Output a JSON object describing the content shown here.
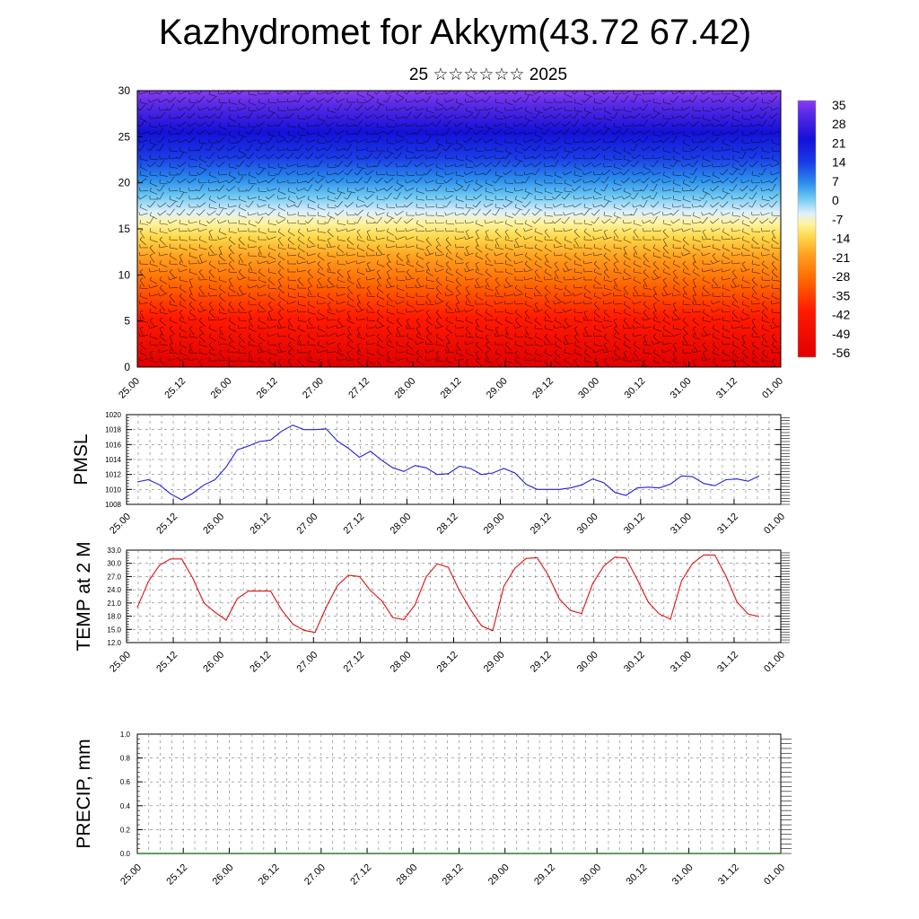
{
  "header": {
    "title": "Kazhydromet for Akkym(43.72 67.42)",
    "subtitle": "25 ☆☆☆☆☆☆ 2025"
  },
  "colors": {
    "pmsl_line": "#1f1fe0",
    "temp_line": "#e01010",
    "precip_line": "#2e7d32",
    "axis": "#000000",
    "grid": "#777777",
    "wind_barbs": "#000000"
  },
  "colorbar": {
    "labels": [
      "35",
      "28",
      "21",
      "14",
      "7",
      "0",
      "-7",
      "-14",
      "-21",
      "-28",
      "-35",
      "-42",
      "-49",
      "-56"
    ],
    "stops": [
      "#ffb3b3",
      "#e60000",
      "#ff2a00",
      "#ff6a00",
      "#ff9900",
      "#ffcc33",
      "#fff06e",
      "#d7eefa",
      "#5fc8f0",
      "#2aa0ea",
      "#2b5ce8",
      "#1a2ae0",
      "#1a10d8",
      "#8a3cf0"
    ]
  },
  "chart_data": [
    {
      "type": "heatmap",
      "title": "",
      "ylim": [
        0,
        30
      ],
      "yticks": [
        0,
        5,
        10,
        15,
        20,
        25,
        30
      ],
      "xticks": [
        "25.00",
        "25.12",
        "26.00",
        "26.12",
        "27.00",
        "27.12",
        "28.00",
        "28.12",
        "29.00",
        "29.12",
        "30.00",
        "30.12",
        "31.00",
        "31.12",
        "01.00"
      ],
      "description_levels": "temperature by level with wind barbs",
      "colorbar_range": [
        -56,
        35
      ]
    },
    {
      "type": "line",
      "ylabel": "PMSL",
      "ylim": [
        1008,
        1020
      ],
      "yticks": [
        1008,
        1010,
        1012,
        1014,
        1016,
        1018,
        1020
      ],
      "xticks": [
        "25.00",
        "25.12",
        "26.00",
        "26.12",
        "27.00",
        "27.12",
        "28.00",
        "28.12",
        "29.00",
        "29.12",
        "30.00",
        "30.12",
        "31.00",
        "31.12",
        "01.00"
      ],
      "series": [
        {
          "values": [
            1011.0,
            1011.3,
            1010.6,
            1009.4,
            1008.6,
            1009.5,
            1010.6,
            1011.3,
            1013.0,
            1015.3,
            1015.8,
            1016.4,
            1016.6,
            1017.8,
            1018.6,
            1018.0,
            1018.0,
            1018.1,
            1016.5,
            1015.5,
            1014.3,
            1015.1,
            1013.9,
            1012.9,
            1012.4,
            1013.2,
            1012.9,
            1012.0,
            1012.1,
            1013.1,
            1012.8,
            1012.0,
            1012.2,
            1012.8,
            1012.2,
            1010.7,
            1010.0,
            1010.0,
            1010.0,
            1010.2,
            1010.6,
            1011.4,
            1010.9,
            1009.6,
            1009.2,
            1010.2,
            1010.3,
            1010.2,
            1010.7,
            1011.8,
            1011.7,
            1010.8,
            1010.5,
            1011.3,
            1011.4,
            1011.1,
            1011.8
          ]
        }
      ]
    },
    {
      "type": "line",
      "ylabel": "TEMP at 2 M",
      "ylim": [
        12.0,
        33.0
      ],
      "yticks": [
        "12.0",
        "15.0",
        "18.0",
        "21.0",
        "24.0",
        "27.0",
        "30.0",
        "33.0"
      ],
      "xticks": [
        "25.00",
        "25.12",
        "26.00",
        "26.12",
        "27.00",
        "27.12",
        "28.00",
        "28.12",
        "29.00",
        "29.12",
        "30.00",
        "30.12",
        "31.00",
        "31.12",
        "01.00"
      ],
      "series": [
        {
          "values": [
            20.0,
            25.9,
            29.6,
            31.0,
            31.0,
            26.6,
            21.0,
            18.9,
            17.1,
            22.0,
            23.7,
            23.7,
            23.7,
            19.4,
            16.2,
            14.8,
            14.3,
            20.0,
            24.9,
            27.3,
            27.0,
            23.8,
            21.5,
            17.7,
            17.2,
            20.6,
            26.9,
            29.9,
            29.1,
            23.8,
            19.5,
            15.8,
            14.7,
            24.8,
            28.9,
            31.1,
            31.3,
            27.3,
            21.9,
            19.3,
            18.6,
            25.4,
            29.4,
            31.4,
            31.2,
            26.4,
            21.2,
            18.5,
            17.3,
            26.0,
            30.0,
            31.9,
            31.9,
            27.1,
            21.2,
            18.5,
            17.9
          ]
        }
      ]
    },
    {
      "type": "line",
      "ylabel": "PRECIP, mm",
      "ylim": [
        0.0,
        1.0
      ],
      "yticks": [
        "0.0",
        "0.2",
        "0.4",
        "0.6",
        "0.8",
        "1.0"
      ],
      "xticks": [
        "25.00",
        "25.12",
        "26.00",
        "26.12",
        "27.00",
        "27.12",
        "28.00",
        "28.12",
        "29.00",
        "29.12",
        "30.00",
        "30.12",
        "31.00",
        "31.12",
        "01.00"
      ],
      "series": [
        {
          "values": [
            0,
            0,
            0,
            0,
            0,
            0,
            0,
            0,
            0,
            0,
            0,
            0,
            0,
            0,
            0,
            0,
            0,
            0,
            0,
            0,
            0,
            0,
            0,
            0,
            0,
            0,
            0,
            0,
            0,
            0,
            0,
            0,
            0,
            0,
            0,
            0,
            0,
            0,
            0,
            0,
            0,
            0,
            0,
            0,
            0,
            0,
            0,
            0,
            0,
            0,
            0,
            0,
            0,
            0,
            0,
            0,
            0
          ]
        }
      ]
    }
  ]
}
